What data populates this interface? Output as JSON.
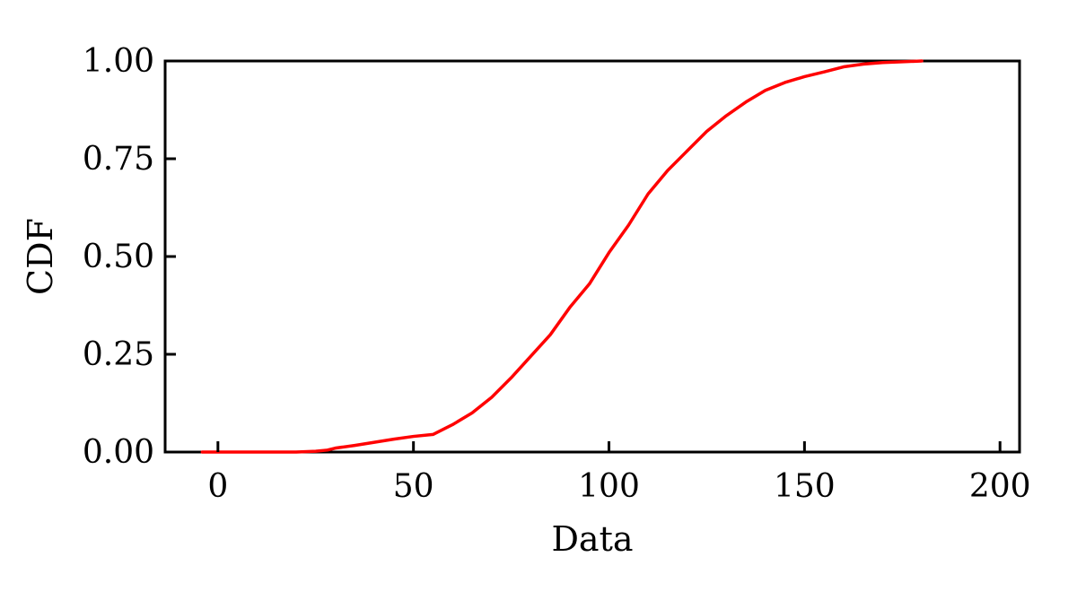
{
  "chart_data": {
    "type": "line",
    "title": "",
    "xlabel": "Data",
    "ylabel": "CDF",
    "xlim": [
      -13.5,
      205
    ],
    "ylim": [
      0,
      1
    ],
    "xticks": [
      0,
      50,
      100,
      150,
      200
    ],
    "xtick_labels": [
      "0",
      "50",
      "100",
      "150",
      "200"
    ],
    "yticks": [
      0,
      0.25,
      0.5,
      0.75,
      1.0
    ],
    "ytick_labels": [
      "0.00",
      "0.25",
      "0.50",
      "0.75",
      "1.00"
    ],
    "grid": false,
    "legend": "none",
    "colors": {
      "line": "#ff0000",
      "axes": "#000000",
      "background": "#ffffff"
    },
    "series": [
      {
        "x": [
          -4,
          0,
          5,
          10,
          15,
          20,
          25,
          28,
          30,
          35,
          40,
          45,
          50,
          55,
          58,
          60,
          65,
          70,
          75,
          80,
          85,
          90,
          95,
          100,
          105,
          110,
          115,
          120,
          125,
          130,
          135,
          140,
          145,
          150,
          155,
          160,
          165,
          170,
          175,
          180
        ],
        "y": [
          0.0,
          0.0,
          0.0,
          0.0,
          0.0,
          0.0,
          0.002,
          0.005,
          0.01,
          0.017,
          0.025,
          0.033,
          0.04,
          0.045,
          0.06,
          0.07,
          0.1,
          0.14,
          0.19,
          0.245,
          0.3,
          0.37,
          0.43,
          0.51,
          0.58,
          0.66,
          0.72,
          0.77,
          0.82,
          0.86,
          0.895,
          0.925,
          0.945,
          0.96,
          0.972,
          0.985,
          0.992,
          0.996,
          0.998,
          1.0
        ]
      }
    ]
  }
}
